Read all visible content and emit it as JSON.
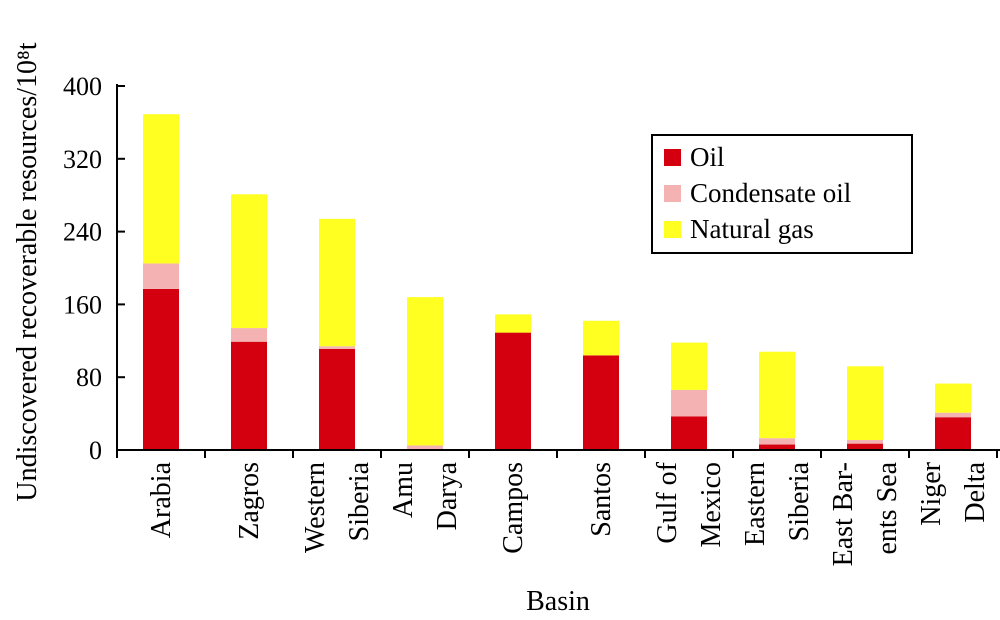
{
  "chart_data": {
    "type": "bar",
    "stacked": true,
    "title": "",
    "xlabel": "Basin",
    "ylabel": "Undiscovered recoverable resources/10⁸t",
    "ylim": [
      0,
      400
    ],
    "yticks": [
      "0",
      "80",
      "160",
      "240",
      "320",
      "400"
    ],
    "categories": [
      [
        "Arabia"
      ],
      [
        "Zagros"
      ],
      [
        "Western",
        "Siberia"
      ],
      [
        "Amu",
        "Darya"
      ],
      [
        "Campos"
      ],
      [
        "Santos"
      ],
      [
        "Gulf of",
        "Mexico"
      ],
      [
        "Eastern",
        "Siberia"
      ],
      [
        "East Bar-",
        "ents Sea"
      ],
      [
        "Niger",
        "Delta"
      ]
    ],
    "series": [
      {
        "name": "Oil",
        "color": "#d40010",
        "values": [
          177,
          119,
          111,
          1,
          129,
          104,
          37,
          6,
          7,
          36
        ]
      },
      {
        "name": "Condensate oil",
        "color": "#f4b3b2",
        "values": [
          28,
          15,
          3,
          4,
          0,
          0,
          29,
          7,
          4,
          5
        ]
      },
      {
        "name": "Natural gas",
        "color": "#ffff22",
        "values": [
          164,
          147,
          140,
          163,
          20,
          38,
          52,
          95,
          81,
          32
        ]
      }
    ],
    "legend": {
      "position": "top-right"
    },
    "grid": false
  }
}
